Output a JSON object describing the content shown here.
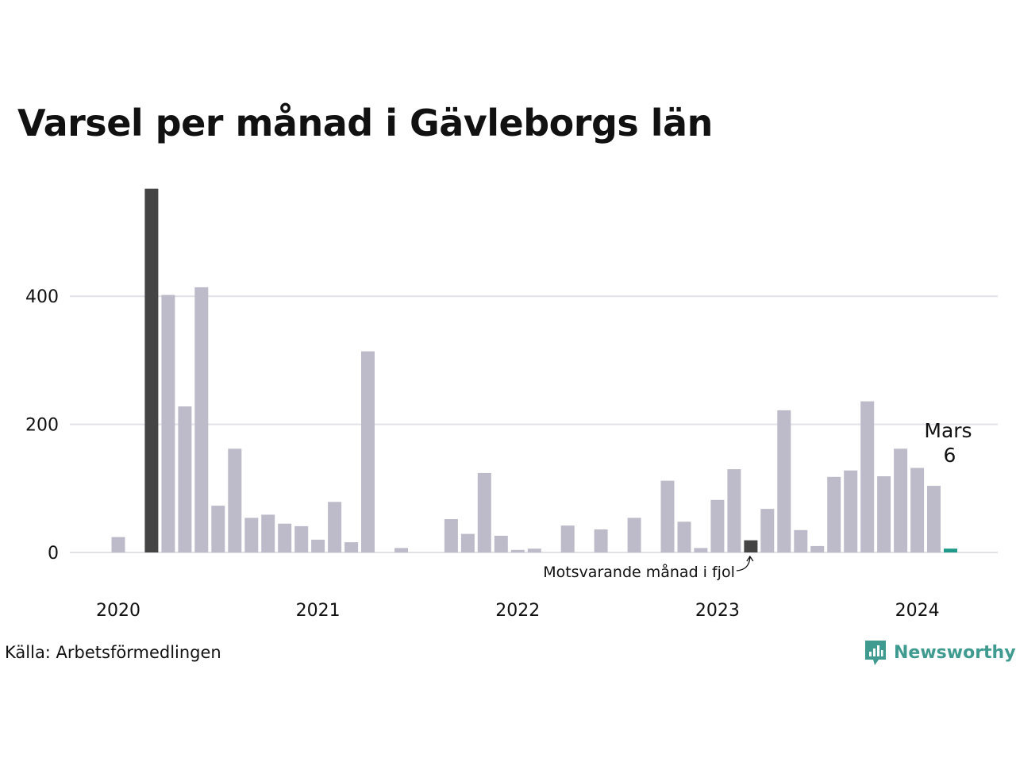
{
  "chart_data": {
    "type": "bar",
    "title": "Varsel per månad i Gävleborgs län",
    "xlabel": "",
    "ylabel": "",
    "ylim": [
      0,
      580
    ],
    "yticks": [
      0,
      200,
      400
    ],
    "x_ticks": [
      "2020",
      "2021",
      "2022",
      "2023",
      "2024"
    ],
    "grid": true,
    "categories": [
      "2020-01",
      "2020-02",
      "2020-03",
      "2020-04",
      "2020-05",
      "2020-06",
      "2020-07",
      "2020-08",
      "2020-09",
      "2020-10",
      "2020-11",
      "2020-12",
      "2021-01",
      "2021-02",
      "2021-03",
      "2021-04",
      "2021-05",
      "2021-06",
      "2021-07",
      "2021-08",
      "2021-09",
      "2021-10",
      "2021-11",
      "2021-12",
      "2022-01",
      "2022-02",
      "2022-03",
      "2022-04",
      "2022-05",
      "2022-06",
      "2022-07",
      "2022-08",
      "2022-09",
      "2022-10",
      "2022-11",
      "2022-12",
      "2023-01",
      "2023-02",
      "2023-03",
      "2023-04",
      "2023-05",
      "2023-06",
      "2023-07",
      "2023-08",
      "2023-09",
      "2023-10",
      "2023-11",
      "2023-12",
      "2024-01",
      "2024-02",
      "2024-03"
    ],
    "values": [
      24,
      0,
      568,
      402,
      228,
      414,
      73,
      162,
      54,
      59,
      45,
      41,
      20,
      79,
      16,
      314,
      0,
      7,
      0,
      0,
      52,
      29,
      124,
      26,
      4,
      6,
      0,
      42,
      0,
      36,
      0,
      54,
      0,
      112,
      48,
      7,
      82,
      130,
      19,
      68,
      222,
      35,
      10,
      118,
      128,
      236,
      119,
      162,
      132,
      104,
      6
    ],
    "highlight": {
      "current_index": 50,
      "previous_year_index": 38,
      "record_index": 2
    },
    "colors": {
      "default": "#bdbbc9",
      "highlight_dark": "#444444",
      "current": "#1f9a8a",
      "grid": "#e3e1e8"
    },
    "annotations": {
      "current_month": "Mars",
      "current_value": "6",
      "previous_year": "Motsvarande månad i fjol"
    }
  },
  "footer": {
    "source": "Källa: Arbetsförmedlingen",
    "brand": "Newsworthy"
  },
  "icons": {
    "brand_logo": "newsworthy-logo-icon"
  }
}
